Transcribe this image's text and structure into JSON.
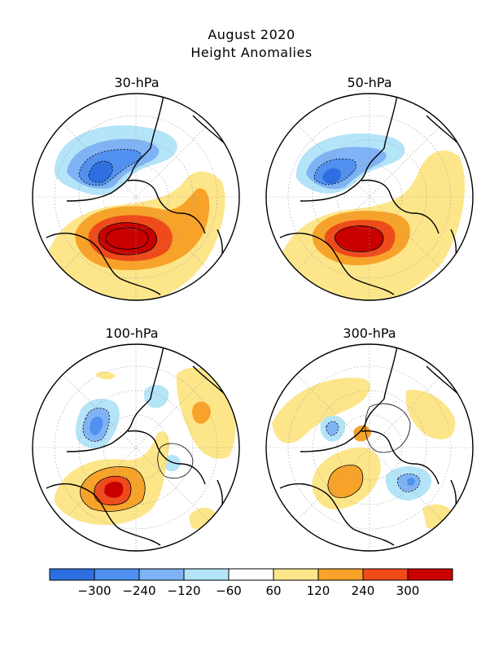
{
  "title": "August 2020",
  "subtitle": "Height Anomalies",
  "panels": [
    {
      "label": "30-hPa"
    },
    {
      "label": "50-hPa"
    },
    {
      "label": "100-hPa"
    },
    {
      "label": "300-hPa"
    }
  ],
  "colorbar": {
    "colors": [
      "#2d6fe0",
      "#4f90f0",
      "#7fb3f5",
      "#b4e4f7",
      "#ffffff",
      "#fde68a",
      "#f7a32a",
      "#ef4a1a",
      "#c80000"
    ],
    "tick_labels": [
      "-300",
      "-240",
      "-120",
      "-60",
      "60",
      "120",
      "240",
      "300"
    ]
  }
}
